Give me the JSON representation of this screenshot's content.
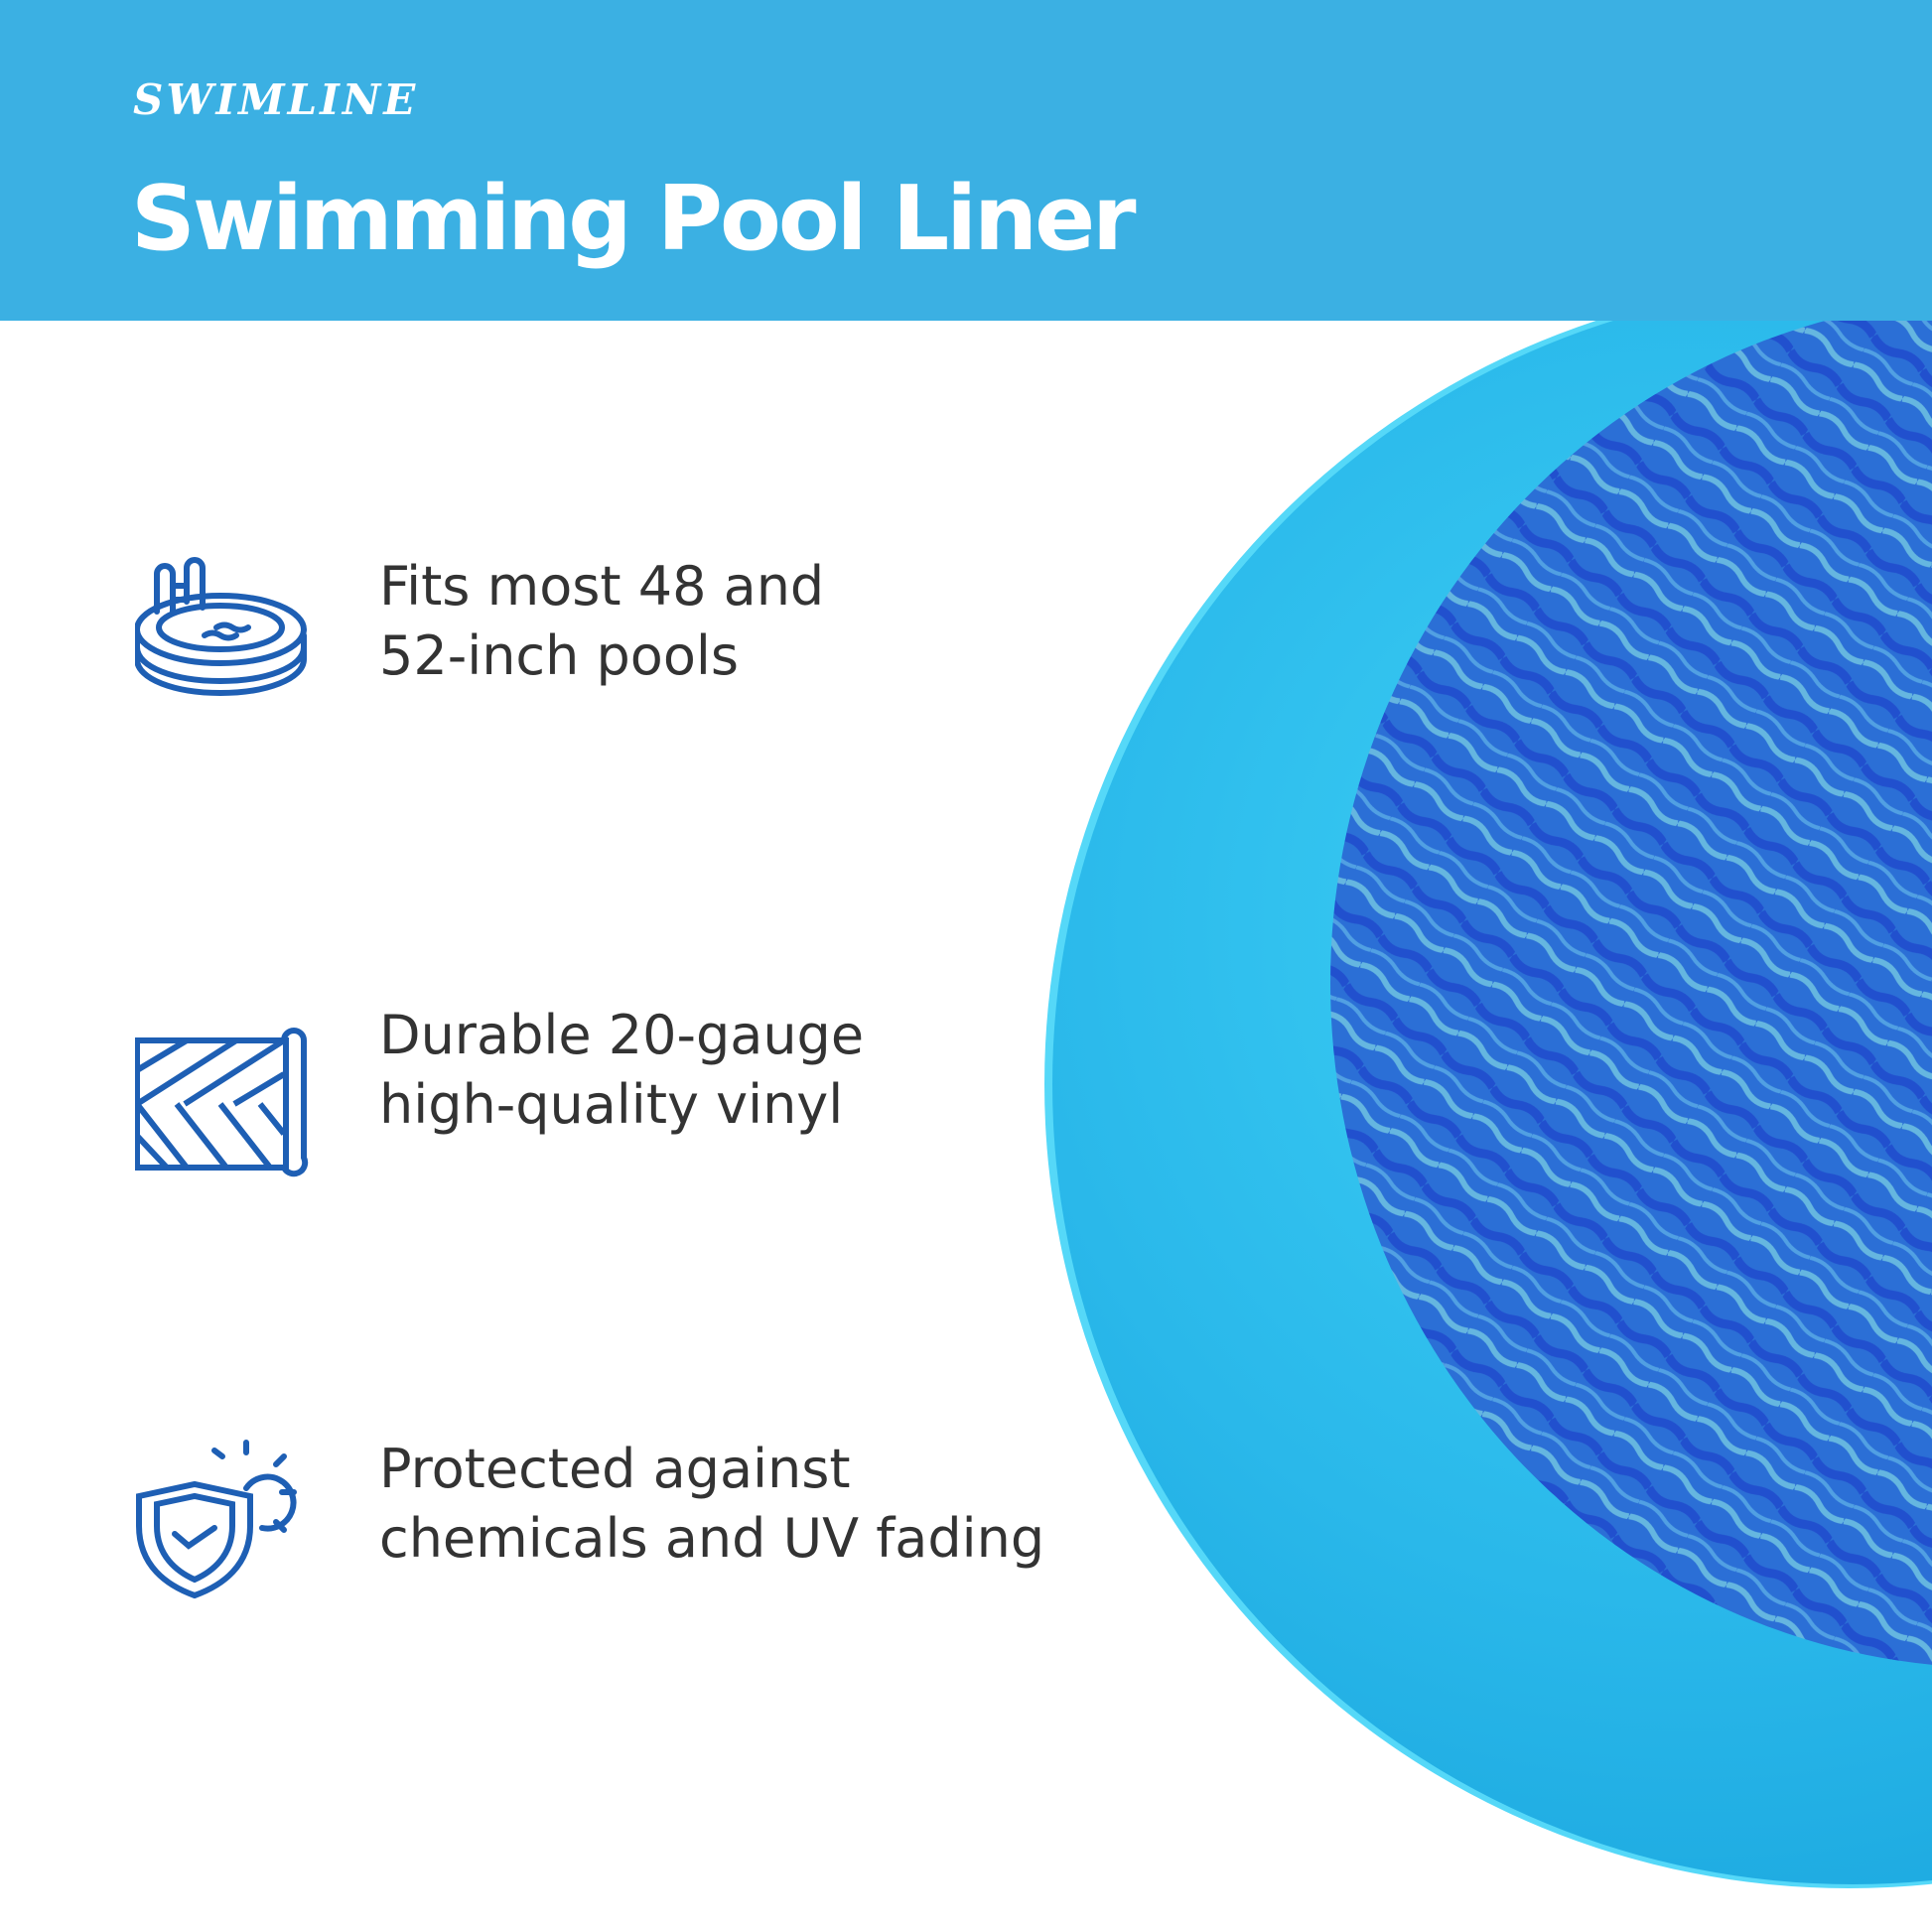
{
  "brand": {
    "logo": "SWIMLINE",
    "primary_color": "#3bb0e3",
    "icon_color": "#1e5fb4"
  },
  "header": {
    "title": "Swimming Pool Liner"
  },
  "features": [
    {
      "icon": "above-ground-pool-icon",
      "line1": "Fits most 48 and",
      "line2": "52-inch pools"
    },
    {
      "icon": "vinyl-roll-icon",
      "line1": "Durable 20-gauge",
      "line2": "high-quality vinyl"
    },
    {
      "icon": "uv-shield-icon",
      "line1": "Protected against",
      "line2": "chemicals and UV fading"
    }
  ]
}
